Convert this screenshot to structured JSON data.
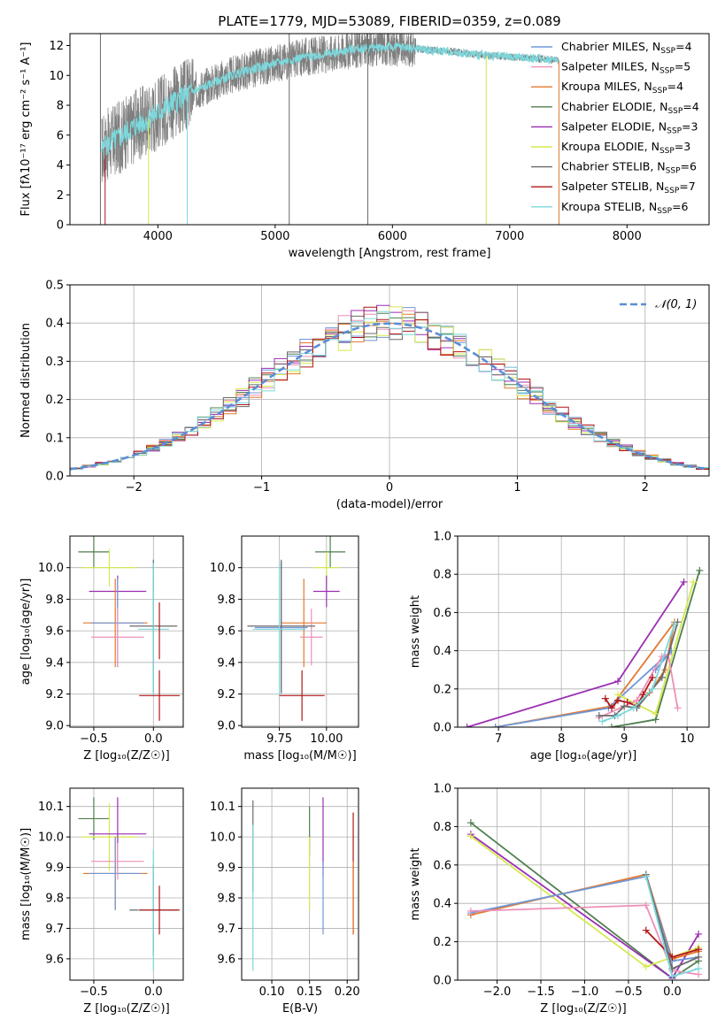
{
  "figure": {
    "title": "PLATE=1779, MJD=53089, FIBERID=0359, z=0.089"
  },
  "colors": {
    "Chabrier MILES": "#6f98d8",
    "Salpeter MILES": "#ee8fb8",
    "Kroupa MILES": "#e4782e",
    "Chabrier ELODIE": "#4f7f4f",
    "Salpeter ELODIE": "#9a2fb2",
    "Kroupa ELODIE": "#d6e84e",
    "Chabrier STELIB": "#6a6a6a",
    "Salpeter STELIB": "#b01717",
    "Kroupa STELIB": "#7cd8dc"
  },
  "legend": [
    {
      "key": "Chabrier MILES",
      "label": "Chabrier MILES, N",
      "nssp": "4"
    },
    {
      "key": "Salpeter MILES",
      "label": "Salpeter MILES, N",
      "nssp": "5"
    },
    {
      "key": "Kroupa MILES",
      "label": "Kroupa MILES, N",
      "nssp": "4"
    },
    {
      "key": "Chabrier ELODIE",
      "label": "Chabrier ELODIE, N",
      "nssp": "4"
    },
    {
      "key": "Salpeter ELODIE",
      "label": "Salpeter ELODIE, N",
      "nssp": "3"
    },
    {
      "key": "Kroupa ELODIE",
      "label": "Kroupa ELODIE, N",
      "nssp": "3"
    },
    {
      "key": "Chabrier STELIB",
      "label": "Chabrier STELIB, N",
      "nssp": "6"
    },
    {
      "key": "Salpeter STELIB",
      "label": "Salpeter STELIB, N",
      "nssp": "7"
    },
    {
      "key": "Kroupa STELIB",
      "label": "Kroupa STELIB, N",
      "nssp": "6"
    }
  ],
  "chart_data": [
    {
      "id": "spectrum",
      "type": "line",
      "xlabel": "wavelength [Angstrom, rest frame]",
      "ylabel": "Flux [fλ10⁻¹⁷ erg cm⁻² s⁻¹ A⁻¹]",
      "xlim": [
        3250,
        8700
      ],
      "ylim": [
        0,
        12.8
      ],
      "xticks": [
        4000,
        5000,
        6000,
        7000,
        8000
      ],
      "yticks": [
        0,
        2,
        4,
        6,
        8,
        10,
        12
      ],
      "continuum": [
        [
          3520,
          5.0
        ],
        [
          3600,
          5.5
        ],
        [
          3700,
          6.0
        ],
        [
          3800,
          6.6
        ],
        [
          3900,
          7.0
        ],
        [
          4000,
          7.5
        ],
        [
          4100,
          8.0
        ],
        [
          4200,
          8.5
        ],
        [
          4300,
          8.9
        ],
        [
          4500,
          9.6
        ],
        [
          4700,
          10.2
        ],
        [
          4900,
          10.6
        ],
        [
          5100,
          11.0
        ],
        [
          5300,
          11.3
        ],
        [
          5500,
          11.5
        ],
        [
          5700,
          11.8
        ],
        [
          5900,
          11.9
        ],
        [
          6100,
          11.9
        ],
        [
          6300,
          11.7
        ],
        [
          6500,
          11.6
        ],
        [
          6700,
          11.4
        ],
        [
          6900,
          11.3
        ],
        [
          7100,
          11.2
        ],
        [
          7300,
          11.1
        ],
        [
          7420,
          11.0
        ]
      ],
      "observed_range": [
        3520,
        7420
      ],
      "model_range": [
        3520,
        7420
      ],
      "model_key": "Kroupa STELIB",
      "observed_color": "#7f7f7f",
      "spikes": [
        {
          "x": 3550,
          "ymin": 0,
          "key": "Salpeter STELIB"
        },
        {
          "x": 3920,
          "ymin": 0,
          "key": "Kroupa ELODIE"
        },
        {
          "x": 4250,
          "ymin": 0,
          "key": "Kroupa STELIB"
        },
        {
          "x": 6800,
          "ymin": 0,
          "key": "Kroupa ELODIE"
        },
        {
          "x": 7420,
          "ymin": 0,
          "key": "Kroupa MILES"
        },
        {
          "x": 3510,
          "ymin": 0,
          "top": 12.8,
          "key": "Chabrier STELIB"
        },
        {
          "x": 5120,
          "ymin": 0,
          "top": 12.8,
          "key": "Chabrier STELIB"
        },
        {
          "x": 5790,
          "ymin": 0,
          "top": 12.8,
          "key": "Chabrier STELIB"
        }
      ]
    },
    {
      "id": "residuals",
      "type": "step",
      "xlabel": "(data-model)/error",
      "ylabel": "Normed distribution",
      "xlim": [
        -2.5,
        2.5
      ],
      "ylim": [
        0,
        0.5
      ],
      "xticks": [
        -2,
        -1,
        0,
        1,
        2
      ],
      "yticks": [
        0.0,
        0.1,
        0.2,
        0.3,
        0.4,
        0.5
      ],
      "bin_width": 0.1,
      "gaussian_label": "𝒩(0, 1)",
      "gaussian_color": "#5b8dd6",
      "series_keys": [
        "Chabrier MILES",
        "Salpeter MILES",
        "Kroupa MILES",
        "Chabrier ELODIE",
        "Salpeter ELODIE",
        "Kroupa ELODIE",
        "Chabrier STELIB",
        "Salpeter STELIB",
        "Kroupa STELIB"
      ]
    },
    {
      "id": "age_vs_Z",
      "type": "errorbar",
      "xlabel": "Z [log₁₀(Z/Z☉)]",
      "ylabel": "age  [log₁₀(age/yr)]",
      "xlim": [
        -0.7,
        0.25
      ],
      "ylim": [
        8.99,
        10.2
      ],
      "xticks": [
        -0.5,
        0.0
      ],
      "yticks": [
        9.0,
        9.2,
        9.4,
        9.6,
        9.8,
        10.0
      ],
      "points": [
        {
          "key": "Chabrier ELODIE",
          "x": -0.5,
          "y": 10.1,
          "xerr": 0.13,
          "yerr": 0.1
        },
        {
          "key": "Kroupa ELODIE",
          "x": -0.37,
          "y": 10.0,
          "xerr": 0.23,
          "yerr": 0.12
        },
        {
          "key": "Salpeter ELODIE",
          "x": -0.3,
          "y": 9.85,
          "xerr": 0.24,
          "yerr": 0.1
        },
        {
          "key": "Kroupa MILES",
          "x": -0.32,
          "y": 9.65,
          "xerr": 0.27,
          "yerr": 0.28
        },
        {
          "key": "Chabrier MILES",
          "x": -0.3,
          "y": 9.65,
          "xerr": 0.22,
          "yerr": 0.28
        },
        {
          "key": "Salpeter MILES",
          "x": -0.3,
          "y": 9.56,
          "xerr": 0.22,
          "yerr": 0.18
        },
        {
          "key": "Chabrier STELIB",
          "x": 0.0,
          "y": 9.63,
          "xerr": 0.2,
          "yerr": 0.42
        },
        {
          "key": "Kroupa STELIB",
          "x": 0.0,
          "y": 9.61,
          "xerr": 0.13,
          "yerr": 0.42
        },
        {
          "key": "Salpeter STELIB",
          "x": 0.05,
          "y": 9.19,
          "xerr": 0.17,
          "yerr": 0.16
        },
        {
          "key": "Salpeter STELIB",
          "x": 0.05,
          "y": 9.6,
          "xerr": 0.0,
          "yerr": 0.18
        }
      ]
    },
    {
      "id": "age_vs_mass",
      "type": "errorbar",
      "xlabel": "mass [log₁₀(M/M☉)]",
      "ylabel": "",
      "xlim": [
        9.55,
        10.17
      ],
      "ylim": [
        8.99,
        10.2
      ],
      "xticks": [
        9.75,
        10.0
      ],
      "yticks": [
        9.0,
        9.2,
        9.4,
        9.6,
        9.8,
        10.0
      ],
      "points": [
        {
          "key": "Chabrier ELODIE",
          "x": 10.02,
          "y": 10.1,
          "xerr": 0.08,
          "yerr": 0.1
        },
        {
          "key": "Kroupa ELODIE",
          "x": 10.0,
          "y": 10.0,
          "xerr": 0.07,
          "yerr": 0.1
        },
        {
          "key": "Salpeter ELODIE",
          "x": 10.0,
          "y": 9.85,
          "xerr": 0.07,
          "yerr": 0.1
        },
        {
          "key": "Kroupa MILES",
          "x": 9.88,
          "y": 9.65,
          "xerr": 0.12,
          "yerr": 0.28
        },
        {
          "key": "Chabrier MILES",
          "x": 9.76,
          "y": 9.62,
          "xerr": 0.14,
          "yerr": 0.42
        },
        {
          "key": "Salpeter MILES",
          "x": 9.92,
          "y": 9.56,
          "xerr": 0.06,
          "yerr": 0.18
        },
        {
          "key": "Chabrier STELIB",
          "x": 9.76,
          "y": 9.63,
          "xerr": 0.18,
          "yerr": 0.42
        },
        {
          "key": "Kroupa STELIB",
          "x": 9.75,
          "y": 9.61,
          "xerr": 0.14,
          "yerr": 0.42
        },
        {
          "key": "Salpeter STELIB",
          "x": 9.87,
          "y": 9.19,
          "xerr": 0.12,
          "yerr": 0.16
        }
      ]
    },
    {
      "id": "mass_vs_Z",
      "type": "errorbar",
      "xlabel": "Z [log₁₀(Z/Z☉)]",
      "ylabel": "mass [log₁₀(M/M☉)]",
      "xlim": [
        -0.7,
        0.25
      ],
      "ylim": [
        9.53,
        10.16
      ],
      "xticks": [
        -0.5,
        0.0
      ],
      "yticks": [
        9.6,
        9.7,
        9.8,
        9.9,
        10.0,
        10.1
      ],
      "points": [
        {
          "key": "Chabrier ELODIE",
          "x": -0.5,
          "y": 10.06,
          "xerr": 0.13,
          "yerr": 0.07
        },
        {
          "key": "Kroupa ELODIE",
          "x": -0.37,
          "y": 10.0,
          "xerr": 0.23,
          "yerr": 0.11
        },
        {
          "key": "Salpeter ELODIE",
          "x": -0.3,
          "y": 10.01,
          "xerr": 0.24,
          "yerr": 0.12
        },
        {
          "key": "Kroupa MILES",
          "x": -0.32,
          "y": 9.88,
          "xerr": 0.27,
          "yerr": 0.12
        },
        {
          "key": "Chabrier MILES",
          "x": -0.32,
          "y": 9.88,
          "xerr": 0.22,
          "yerr": 0.12
        },
        {
          "key": "Salpeter MILES",
          "x": -0.3,
          "y": 9.92,
          "xerr": 0.22,
          "yerr": 0.06
        },
        {
          "key": "Chabrier STELIB",
          "x": 0.0,
          "y": 9.76,
          "xerr": 0.2,
          "yerr": 0.15
        },
        {
          "key": "Kroupa STELIB",
          "x": 0.0,
          "y": 9.76,
          "xerr": 0.13,
          "yerr": 0.2
        },
        {
          "key": "Salpeter STELIB",
          "x": 0.05,
          "y": 9.76,
          "xerr": 0.17,
          "yerr": 0.08
        }
      ]
    },
    {
      "id": "mass_vs_ebv",
      "type": "errorbar",
      "xlabel": "E(B-V)",
      "ylabel": "",
      "xlim": [
        0.06,
        0.215
      ],
      "ylim": [
        9.53,
        10.16
      ],
      "xticks": [
        0.1,
        0.15,
        0.2
      ],
      "yticks": [
        9.6,
        9.7,
        9.8,
        9.9,
        10.0,
        10.1
      ],
      "points": [
        {
          "key": "Chabrier STELIB",
          "x": 0.075,
          "y": 9.97,
          "xerr": 0.0,
          "yerr": 0.15
        },
        {
          "key": "Kroupa STELIB",
          "x": 0.075,
          "y": 9.8,
          "xerr": 0.0,
          "yerr": 0.24
        },
        {
          "key": "Chabrier ELODIE",
          "x": 0.15,
          "y": 10.02,
          "xerr": 0.0,
          "yerr": 0.08
        },
        {
          "key": "Kroupa ELODIE",
          "x": 0.15,
          "y": 9.88,
          "xerr": 0.0,
          "yerr": 0.12
        },
        {
          "key": "Salpeter ELODIE",
          "x": 0.168,
          "y": 10.0,
          "xerr": 0.0,
          "yerr": 0.13
        },
        {
          "key": "Chabrier MILES",
          "x": 0.168,
          "y": 9.8,
          "xerr": 0.0,
          "yerr": 0.12
        },
        {
          "key": "Salpeter STELIB",
          "x": 0.208,
          "y": 9.88,
          "xerr": 0.0,
          "yerr": 0.2
        },
        {
          "key": "Kroupa MILES",
          "x": 0.208,
          "y": 9.8,
          "xerr": 0.0,
          "yerr": 0.12
        }
      ]
    },
    {
      "id": "weight_vs_age",
      "type": "line",
      "xlabel": "age  [log₁₀(age/yr)]",
      "ylabel": "mass weight",
      "xlim": [
        6.35,
        10.35
      ],
      "ylim": [
        0,
        1.0
      ],
      "xticks": [
        7,
        8,
        9,
        10
      ],
      "yticks": [
        0.0,
        0.2,
        0.4,
        0.6,
        0.8,
        1.0
      ],
      "series": [
        {
          "key": "Salpeter ELODIE",
          "x": [
            6.5,
            8.9,
            9.95
          ],
          "y": [
            0.0,
            0.24,
            0.76
          ]
        },
        {
          "key": "Kroupa MILES",
          "x": [
            6.95,
            8.8,
            9.8,
            9.65,
            9.4
          ],
          "y": [
            0.0,
            0.11,
            0.55,
            0.3,
            0.18
          ]
        },
        {
          "key": "Chabrier MILES",
          "x": [
            6.95,
            8.75,
            9.75,
            9.5
          ],
          "y": [
            0.0,
            0.1,
            0.4,
            0.3
          ]
        },
        {
          "key": "Chabrier ELODIE",
          "x": [
            8.8,
            9.5,
            10.2
          ],
          "y": [
            0.0,
            0.04,
            0.82
          ]
        },
        {
          "key": "Kroupa ELODIE",
          "x": [
            8.9,
            9.5,
            10.1
          ],
          "y": [
            0.17,
            0.07,
            0.76
          ]
        },
        {
          "key": "Salpeter MILES",
          "x": [
            8.6,
            9.2,
            9.6,
            9.7,
            9.85
          ],
          "y": [
            0.05,
            0.14,
            0.37,
            0.38,
            0.1
          ]
        },
        {
          "key": "Salpeter STELIB",
          "x": [
            8.7,
            8.8,
            8.9,
            9.05,
            9.2,
            9.3,
            9.45
          ],
          "y": [
            0.15,
            0.1,
            0.14,
            0.13,
            0.11,
            0.17,
            0.26
          ]
        },
        {
          "key": "Chabrier STELIB",
          "x": [
            8.6,
            8.85,
            9.0,
            9.2,
            9.6,
            9.85
          ],
          "y": [
            0.06,
            0.06,
            0.11,
            0.1,
            0.26,
            0.55
          ]
        },
        {
          "key": "Kroupa STELIB",
          "x": [
            8.65,
            8.9,
            9.15,
            9.45,
            9.8
          ],
          "y": [
            0.03,
            0.06,
            0.1,
            0.2,
            0.54
          ]
        }
      ]
    },
    {
      "id": "weight_vs_Z",
      "type": "line",
      "xlabel": "Z [log₁₀(Z/Z☉)]",
      "ylabel": "mass weight",
      "xlim": [
        -2.45,
        0.42
      ],
      "ylim": [
        0,
        1.0
      ],
      "xticks": [
        -2.0,
        -1.5,
        -1.0,
        -0.5,
        0.0
      ],
      "yticks": [
        0.0,
        0.2,
        0.4,
        0.6,
        0.8,
        1.0
      ],
      "series": [
        {
          "key": "Chabrier ELODIE",
          "x": [
            -2.3,
            0.0,
            0.3
          ],
          "y": [
            0.82,
            0.01,
            0.1
          ]
        },
        {
          "key": "Salpeter ELODIE",
          "x": [
            -2.3,
            0.0,
            0.3
          ],
          "y": [
            0.76,
            0.01,
            0.24
          ]
        },
        {
          "key": "Kroupa ELODIE",
          "x": [
            -2.3,
            -0.3,
            0.3
          ],
          "y": [
            0.75,
            0.07,
            0.17
          ]
        },
        {
          "key": "Kroupa MILES",
          "x": [
            -2.3,
            -0.3,
            0.0,
            0.3
          ],
          "y": [
            0.34,
            0.55,
            0.11,
            0.15
          ]
        },
        {
          "key": "Chabrier MILES",
          "x": [
            -2.3,
            -0.3,
            0.0,
            0.3
          ],
          "y": [
            0.35,
            0.54,
            0.1,
            0.12
          ]
        },
        {
          "key": "Salpeter MILES",
          "x": [
            -2.3,
            -0.3,
            0.0,
            0.3
          ],
          "y": [
            0.36,
            0.39,
            0.05,
            0.03
          ]
        },
        {
          "key": "Salpeter STELIB",
          "x": [
            -0.3,
            0.0,
            0.3
          ],
          "y": [
            0.26,
            0.12,
            0.16
          ]
        },
        {
          "key": "Chabrier STELIB",
          "x": [
            -0.3,
            0.0,
            0.3
          ],
          "y": [
            0.55,
            0.06,
            0.12
          ]
        },
        {
          "key": "Kroupa STELIB",
          "x": [
            -0.3,
            0.0,
            0.3
          ],
          "y": [
            0.54,
            0.02,
            0.06
          ]
        }
      ]
    }
  ]
}
